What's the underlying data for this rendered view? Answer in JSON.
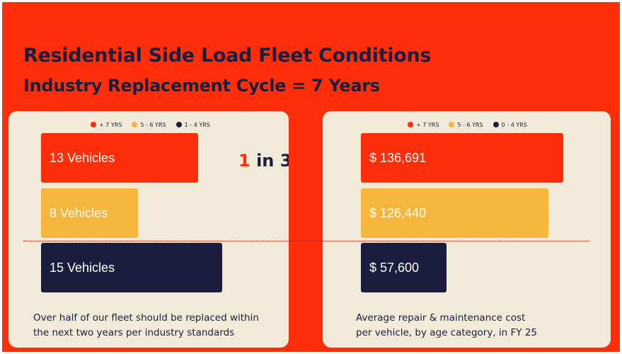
{
  "title": "Residential Side Load Fleet Conditions",
  "subtitle": "Industry Replacement Cycle = 7 Years",
  "colors": {
    "background": "#ff2e0a",
    "panel": "#f1ead8",
    "navy": "#1a1e3c",
    "red": "#ff2e0a",
    "yellow": "#f6b63c"
  },
  "chart_data": [
    {
      "type": "bar",
      "orientation": "horizontal",
      "title": "",
      "legend": [
        "+ 7 YRS",
        "5 - 6 YRS",
        "1 - 4 YRS"
      ],
      "legend_placement": "top",
      "categories": [
        "+ 7 YRS",
        "5 - 6 YRS",
        "1 - 4 YRS"
      ],
      "values": [
        13,
        8,
        15
      ],
      "data_labels": [
        "13 Vehicles",
        "8 Vehicles",
        "15 Vehicles"
      ],
      "colors": [
        "#ff2e0a",
        "#f6b63c",
        "#1a1e3c"
      ],
      "xlim": [
        0,
        16.5
      ],
      "callout": {
        "number": "1",
        "text": "in 3"
      },
      "caption": [
        "Over half of our fleet should be replaced within",
        "the next two years per industry standards"
      ]
    },
    {
      "type": "bar",
      "orientation": "horizontal",
      "title": "",
      "legend": [
        "+ 7 YRS",
        "5 - 6 YRS",
        "0 - 4 YRS"
      ],
      "legend_placement": "top",
      "categories": [
        "+ 7 YRS",
        "5 - 6 YRS",
        "0 - 4 YRS"
      ],
      "values": [
        136691,
        126440,
        57600
      ],
      "data_labels": [
        "$ 136,691",
        "$ 126,440",
        "$ 57,600"
      ],
      "colors": [
        "#ff2e0a",
        "#f6b63c",
        "#1a1e3c"
      ],
      "xlim": [
        0,
        150000
      ],
      "caption": [
        "Average repair & maintenance cost",
        "per vehicle, by age category, in FY 25"
      ]
    }
  ]
}
